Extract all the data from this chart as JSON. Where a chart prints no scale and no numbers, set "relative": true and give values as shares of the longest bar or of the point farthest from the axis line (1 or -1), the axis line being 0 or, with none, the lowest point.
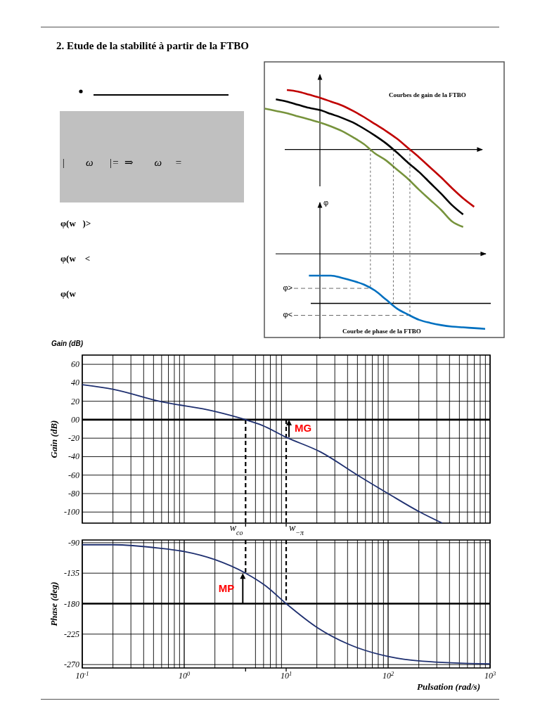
{
  "chart_data": [
    {
      "type": "other",
      "title": "2. Etude de la stabilité à partir de la FTBO",
      "annotations": [
        "|        ω      |=  ⇒        ω     =",
        "φ(w   )>",
        "φ(w    <",
        "φ(w"
      ]
    },
    {
      "type": "line",
      "relative": true,
      "title": "Courbes de gain de la FTBO",
      "categories": [
        null,
        null,
        null,
        null,
        null,
        null,
        null,
        null,
        null,
        null,
        null,
        null,
        null,
        null,
        null,
        null,
        null,
        null,
        null,
        null,
        null
      ],
      "series": [
        {
          "color": "#c00000",
          "values": [
            null,
            null,
            0.77,
            0.75,
            0.71,
            0.67,
            0.62,
            0.57,
            0.5,
            0.42,
            0.33,
            0.24,
            0.14,
            0.02,
            -0.1,
            -0.23,
            -0.36,
            -0.5,
            -0.63,
            -0.74,
            null
          ]
        },
        {
          "color": "#000000",
          "values": [
            null,
            0.65,
            0.62,
            0.58,
            0.54,
            0.51,
            0.46,
            0.41,
            0.35,
            0.27,
            0.18,
            0.08,
            -0.04,
            -0.17,
            -0.29,
            -0.43,
            -0.57,
            -0.72,
            -0.84,
            null,
            null
          ]
        },
        {
          "color": "#77933c",
          "values": [
            0.53,
            0.5,
            0.47,
            0.43,
            0.39,
            0.35,
            0.3,
            0.24,
            0.16,
            0.07,
            -0.05,
            -0.14,
            -0.26,
            -0.38,
            -0.52,
            -0.65,
            -0.78,
            -0.93,
            -1,
            null,
            null
          ]
        }
      ]
    },
    {
      "type": "line",
      "relative": true,
      "title": "Courbe de phase de la FTBO",
      "categories": [
        null,
        null,
        null,
        null,
        null,
        null,
        null,
        null,
        null,
        null,
        null,
        null,
        null,
        null,
        null,
        null,
        null,
        null,
        null,
        null,
        null
      ],
      "series": [
        {
          "color": "#0070c0",
          "values": [
            null,
            null,
            null,
            null,
            -0.29,
            -0.29,
            -0.29,
            -0.32,
            -0.36,
            -0.41,
            -0.49,
            -0.61,
            -0.73,
            -0.81,
            -0.88,
            -0.92,
            -0.95,
            -0.97,
            -0.98,
            -0.99,
            -1
          ]
        }
      ],
      "ref_lines": [
        {
          "axis": "y",
          "value": -0.66,
          "color": "#000000"
        },
        {
          "axis": "y",
          "value": -0.46,
          "label": "φ>",
          "line_style": "dashed",
          "color": "#444444"
        },
        {
          "axis": "y",
          "value": -0.82,
          "label": "φ<",
          "line_style": "dashed",
          "color": "#444444"
        }
      ],
      "annotations": [
        "φ"
      ]
    },
    {
      "type": "line",
      "title": "Gain (dB)",
      "ylabel": "Gain (dB)",
      "log": "x",
      "grid": true,
      "tick_labels": "y",
      "xlim": [
        0.1,
        1000
      ],
      "ylim": [
        -112,
        70
      ],
      "xticks": [
        {
          "value": 0.1,
          "label": null
        },
        {
          "value": 0.2,
          "label": null
        },
        {
          "value": 0.3,
          "label": null
        },
        {
          "value": 0.4,
          "label": null
        },
        {
          "value": 0.5,
          "label": null
        },
        {
          "value": 0.6,
          "label": null
        },
        {
          "value": 0.7,
          "label": null
        },
        {
          "value": 0.8,
          "label": null
        },
        {
          "value": 0.9,
          "label": null
        },
        {
          "value": 1,
          "label": null
        },
        {
          "value": 2,
          "label": null
        },
        {
          "value": 3,
          "label": null
        },
        {
          "value": 4,
          "label": null
        },
        {
          "value": 5,
          "label": null
        },
        {
          "value": 6,
          "label": null
        },
        {
          "value": 7,
          "label": null
        },
        {
          "value": 8,
          "label": null
        },
        {
          "value": 9,
          "label": null
        },
        {
          "value": 10,
          "label": null
        },
        {
          "value": 20,
          "label": null
        },
        {
          "value": 30,
          "label": null
        },
        {
          "value": 40,
          "label": null
        },
        {
          "value": 50,
          "label": null
        },
        {
          "value": 60,
          "label": null
        },
        {
          "value": 70,
          "label": null
        },
        {
          "value": 80,
          "label": null
        },
        {
          "value": 90,
          "label": null
        },
        {
          "value": 100,
          "label": null
        },
        {
          "value": 200,
          "label": null
        },
        {
          "value": 300,
          "label": null
        },
        {
          "value": 400,
          "label": null
        },
        {
          "value": 500,
          "label": null
        },
        {
          "value": 600,
          "label": null
        },
        {
          "value": 700,
          "label": null
        },
        {
          "value": 800,
          "label": null
        },
        {
          "value": 900,
          "label": null
        },
        {
          "value": 1000,
          "label": null
        }
      ],
      "yticks": [
        60,
        40,
        20,
        {
          "value": 0,
          "label": "00"
        },
        -20,
        -40,
        -60,
        -80,
        -100
      ],
      "x": [
        0.1,
        0.2,
        0.57,
        2,
        4,
        5.8,
        10,
        21.8,
        50,
        100,
        205,
        340
      ],
      "series": [
        {
          "color": "#1f3070",
          "values": [
            38,
            33,
            20,
            9,
            0,
            -6,
            -19,
            -35,
            -60,
            -80,
            -100,
            -112
          ]
        }
      ],
      "ref_lines": [
        {
          "axis": "y",
          "value": 0
        },
        {
          "axis": "x",
          "value": 4,
          "label": "w$_{co}$",
          "line_style": "dashed"
        },
        {
          "axis": "x",
          "value": 10,
          "label": "w$_{−π}$",
          "line_style": "dashed"
        }
      ],
      "annotations": [
        "MG"
      ]
    },
    {
      "type": "line",
      "ylabel": "Phase (deg)",
      "xlabel": "Pulsation (rad/s)",
      "log": "x",
      "grid": true,
      "xlim": [
        0.1,
        1000
      ],
      "ylim": [
        -275,
        -86
      ],
      "xticks": [
        {
          "value": 0.1,
          "label": "10$^{-1}$"
        },
        {
          "value": 0.2,
          "label": null
        },
        {
          "value": 0.3,
          "label": null
        },
        {
          "value": 0.4,
          "label": null
        },
        {
          "value": 0.5,
          "label": null
        },
        {
          "value": 0.6,
          "label": null
        },
        {
          "value": 0.7,
          "label": null
        },
        {
          "value": 0.8,
          "label": null
        },
        {
          "value": 0.9,
          "label": null
        },
        {
          "value": 1,
          "label": "10$^{0}$"
        },
        {
          "value": 2,
          "label": null
        },
        {
          "value": 3,
          "label": null
        },
        {
          "value": 4,
          "label": null
        },
        {
          "value": 5,
          "label": null
        },
        {
          "value": 6,
          "label": null
        },
        {
          "value": 7,
          "label": null
        },
        {
          "value": 8,
          "label": null
        },
        {
          "value": 9,
          "label": null
        },
        {
          "value": 10,
          "label": "10$^{1}$"
        },
        {
          "value": 20,
          "label": null
        },
        {
          "value": 30,
          "label": null
        },
        {
          "value": 40,
          "label": null
        },
        {
          "value": 50,
          "label": null
        },
        {
          "value": 60,
          "label": null
        },
        {
          "value": 70,
          "label": null
        },
        {
          "value": 80,
          "label": null
        },
        {
          "value": 90,
          "label": null
        },
        {
          "value": 100,
          "label": "10$^{2}$"
        },
        {
          "value": 200,
          "label": null
        },
        {
          "value": 300,
          "label": null
        },
        {
          "value": 400,
          "label": null
        },
        {
          "value": 500,
          "label": null
        },
        {
          "value": 600,
          "label": null
        },
        {
          "value": 700,
          "label": null
        },
        {
          "value": 800,
          "label": null
        },
        {
          "value": 900,
          "label": null
        },
        {
          "value": 1000,
          "label": "10$^{3}$"
        }
      ],
      "yticks": [
        -90,
        -135,
        -180,
        -225,
        -270
      ],
      "x": [
        0.1,
        0.2,
        0.57,
        1,
        2,
        4,
        6.2,
        10,
        20,
        41,
        100,
        218,
        1000
      ],
      "series": [
        {
          "color": "#1f3070",
          "values": [
            -93,
            -93,
            -98,
            -103,
            -115,
            -135,
            -153,
            -180,
            -215,
            -240,
            -258,
            -265,
            -269
          ]
        }
      ],
      "ref_lines": [
        {
          "axis": "y",
          "value": -180
        },
        {
          "axis": "x",
          "value": 4,
          "line_style": "dashed"
        },
        {
          "axis": "x",
          "value": 10,
          "line_style": "dashed"
        }
      ],
      "annotations": [
        "MP"
      ]
    }
  ]
}
